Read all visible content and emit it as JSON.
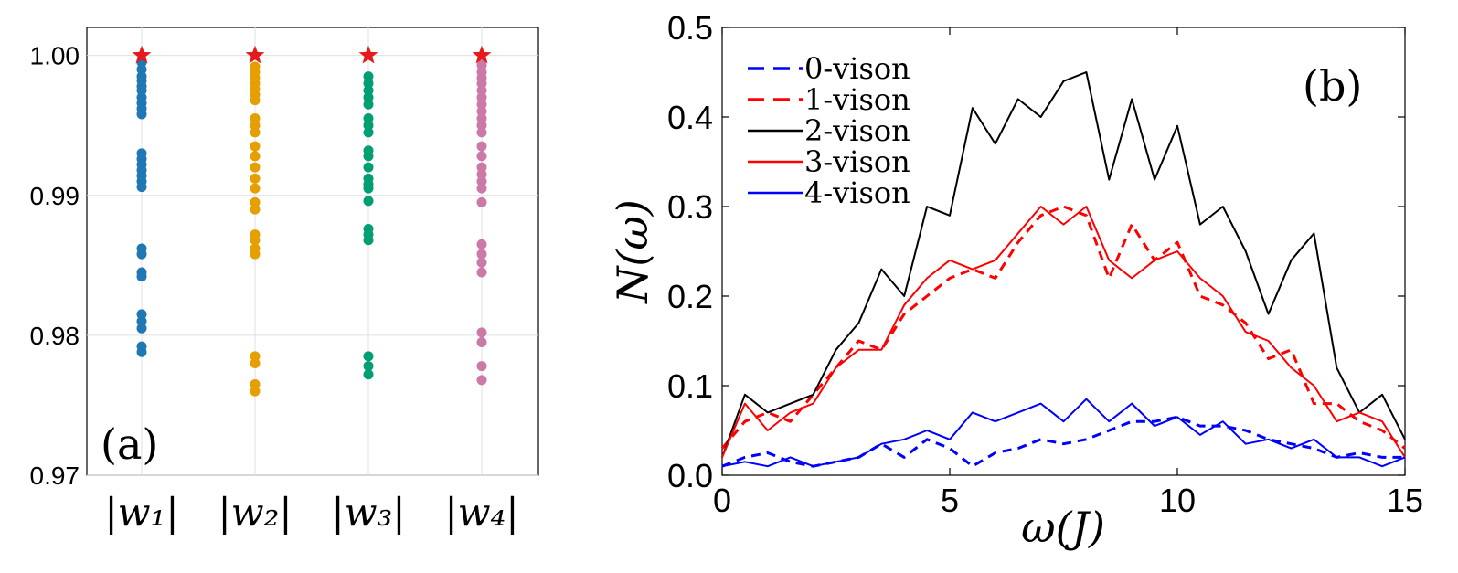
{
  "chart_data": [
    {
      "panel": "(a)",
      "type": "scatter",
      "categories": [
        "|w₁|",
        "|w₂|",
        "|w₃|",
        "|w₄|"
      ],
      "ylim": [
        0.97,
        1.002
      ],
      "yticks": [
        "0.97",
        "0.98",
        "0.99",
        "1.00"
      ],
      "grid": true,
      "marker_color": "#e41a1c",
      "marker_value": 1.0,
      "series": [
        {
          "category": "|w₁|",
          "color": "#1f77b4",
          "values": [
            0.9995,
            0.999,
            0.9985,
            0.9982,
            0.9978,
            0.9975,
            0.997,
            0.9966,
            0.9962,
            0.9958,
            0.993,
            0.9926,
            0.9922,
            0.9918,
            0.9914,
            0.991,
            0.9906,
            0.9862,
            0.9858,
            0.9845,
            0.9842,
            0.9815,
            0.981,
            0.9805,
            0.9792,
            0.9788
          ]
        },
        {
          "category": "|w₂|",
          "color": "#e69f00",
          "values": [
            0.9992,
            0.9988,
            0.9984,
            0.998,
            0.9976,
            0.9972,
            0.9968,
            0.9955,
            0.995,
            0.9945,
            0.9935,
            0.9928,
            0.992,
            0.9912,
            0.9905,
            0.9895,
            0.989,
            0.9872,
            0.9868,
            0.9862,
            0.9858,
            0.9785,
            0.978,
            0.9765,
            0.976
          ]
        },
        {
          "category": "|w₃|",
          "color": "#009e73",
          "values": [
            0.9985,
            0.998,
            0.9975,
            0.997,
            0.9965,
            0.9955,
            0.995,
            0.9945,
            0.9932,
            0.9928,
            0.992,
            0.9912,
            0.9908,
            0.9905,
            0.9896,
            0.9876,
            0.9872,
            0.9868,
            0.9785,
            0.9778,
            0.9772
          ]
        },
        {
          "category": "|w₄|",
          "color": "#cc79a7",
          "values": [
            0.9993,
            0.9988,
            0.9984,
            0.998,
            0.9975,
            0.997,
            0.9965,
            0.996,
            0.9955,
            0.995,
            0.9945,
            0.9935,
            0.9928,
            0.992,
            0.9915,
            0.991,
            0.9905,
            0.9895,
            0.9865,
            0.9858,
            0.9852,
            0.9845,
            0.9802,
            0.9795,
            0.9778,
            0.9768
          ]
        }
      ]
    },
    {
      "panel": "(b)",
      "type": "line",
      "xlabel": "ω(J)",
      "ylabel": "N(ω)",
      "xlim": [
        0,
        15
      ],
      "ylim": [
        0,
        0.5
      ],
      "xticks": [
        "0",
        "5",
        "10",
        "15"
      ],
      "yticks": [
        "0.0",
        "0.1",
        "0.2",
        "0.3",
        "0.4",
        "0.5"
      ],
      "legend_position": "top-left",
      "series": [
        {
          "name": "0-vison",
          "color": "#0000ff",
          "dash": true,
          "x": [
            0,
            0.5,
            1,
            1.5,
            2,
            2.5,
            3,
            3.5,
            4,
            4.5,
            5,
            5.5,
            6,
            6.5,
            7,
            7.5,
            8,
            8.5,
            9,
            9.5,
            10,
            10.5,
            11,
            11.5,
            12,
            12.5,
            13,
            13.5,
            14,
            14.5,
            15
          ],
          "y": [
            0.01,
            0.02,
            0.025,
            0.015,
            0.01,
            0.015,
            0.02,
            0.035,
            0.02,
            0.04,
            0.03,
            0.01,
            0.025,
            0.03,
            0.04,
            0.035,
            0.04,
            0.05,
            0.06,
            0.06,
            0.065,
            0.055,
            0.055,
            0.05,
            0.04,
            0.035,
            0.03,
            0.02,
            0.025,
            0.02,
            0.02
          ]
        },
        {
          "name": "1-vison",
          "color": "#ff0000",
          "dash": true,
          "x": [
            0,
            0.5,
            1,
            1.5,
            2,
            2.5,
            3,
            3.5,
            4,
            4.5,
            5,
            5.5,
            6,
            6.5,
            7,
            7.5,
            8,
            8.5,
            9,
            9.5,
            10,
            10.5,
            11,
            11.5,
            12,
            12.5,
            13,
            13.5,
            14,
            14.5,
            15
          ],
          "y": [
            0.03,
            0.06,
            0.07,
            0.06,
            0.09,
            0.12,
            0.15,
            0.14,
            0.18,
            0.2,
            0.22,
            0.23,
            0.22,
            0.26,
            0.29,
            0.3,
            0.29,
            0.22,
            0.28,
            0.24,
            0.26,
            0.2,
            0.19,
            0.17,
            0.13,
            0.14,
            0.08,
            0.08,
            0.06,
            0.05,
            0.03
          ]
        },
        {
          "name": "2-vison",
          "color": "#000000",
          "dash": false,
          "x": [
            0,
            0.5,
            1,
            1.5,
            2,
            2.5,
            3,
            3.5,
            4,
            4.5,
            5,
            5.5,
            6,
            6.5,
            7,
            7.5,
            8,
            8.5,
            9,
            9.5,
            10,
            10.5,
            11,
            11.5,
            12,
            12.5,
            13,
            13.5,
            14,
            14.5,
            15
          ],
          "y": [
            0.02,
            0.09,
            0.07,
            0.08,
            0.09,
            0.14,
            0.17,
            0.23,
            0.2,
            0.3,
            0.29,
            0.41,
            0.37,
            0.42,
            0.4,
            0.44,
            0.45,
            0.33,
            0.42,
            0.33,
            0.39,
            0.28,
            0.3,
            0.25,
            0.18,
            0.24,
            0.27,
            0.12,
            0.07,
            0.09,
            0.04
          ]
        },
        {
          "name": "3-vison",
          "color": "#ff0000",
          "dash": false,
          "x": [
            0,
            0.5,
            1,
            1.5,
            2,
            2.5,
            3,
            3.5,
            4,
            4.5,
            5,
            5.5,
            6,
            6.5,
            7,
            7.5,
            8,
            8.5,
            9,
            9.5,
            10,
            10.5,
            11,
            11.5,
            12,
            12.5,
            13,
            13.5,
            14,
            14.5,
            15
          ],
          "y": [
            0.02,
            0.08,
            0.05,
            0.07,
            0.08,
            0.12,
            0.14,
            0.14,
            0.19,
            0.22,
            0.24,
            0.23,
            0.24,
            0.27,
            0.3,
            0.28,
            0.3,
            0.24,
            0.22,
            0.24,
            0.25,
            0.22,
            0.2,
            0.16,
            0.15,
            0.12,
            0.1,
            0.06,
            0.07,
            0.06,
            0.02
          ]
        },
        {
          "name": "4-vison",
          "color": "#0000ff",
          "dash": false,
          "x": [
            0,
            0.5,
            1,
            1.5,
            2,
            2.5,
            3,
            3.5,
            4,
            4.5,
            5,
            5.5,
            6,
            6.5,
            7,
            7.5,
            8,
            8.5,
            9,
            9.5,
            10,
            10.5,
            11,
            11.5,
            12,
            12.5,
            13,
            13.5,
            14,
            14.5,
            15
          ],
          "y": [
            0.01,
            0.015,
            0.01,
            0.02,
            0.01,
            0.015,
            0.02,
            0.035,
            0.04,
            0.05,
            0.04,
            0.07,
            0.06,
            0.07,
            0.08,
            0.06,
            0.085,
            0.06,
            0.08,
            0.055,
            0.065,
            0.045,
            0.06,
            0.035,
            0.04,
            0.03,
            0.04,
            0.02,
            0.02,
            0.01,
            0.02
          ]
        }
      ]
    }
  ],
  "panel_a_label": "(a)",
  "panel_b_label": "(b)"
}
